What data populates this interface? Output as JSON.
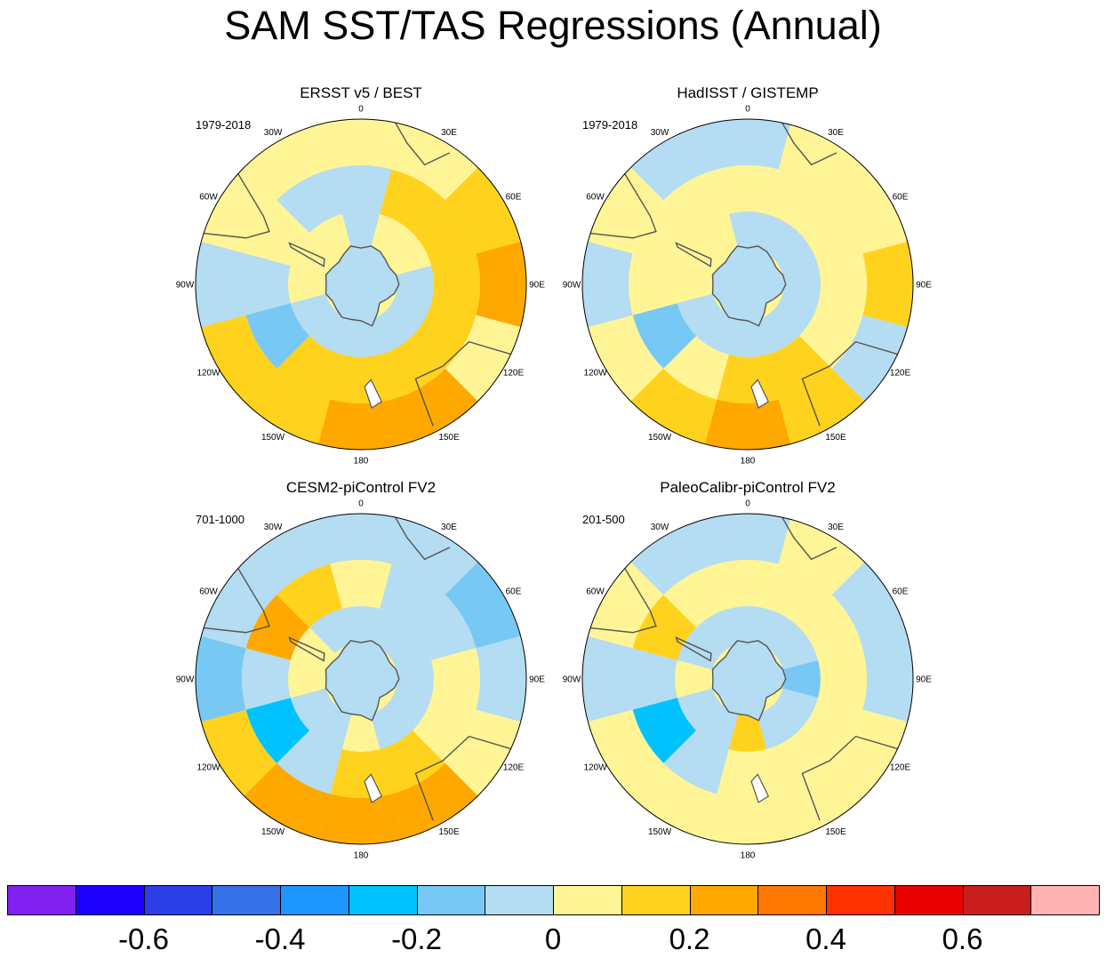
{
  "title": "SAM SST/TAS Regressions (Annual)",
  "chart_data": {
    "type": "heatmap",
    "projection": "south-polar-stereographic",
    "title": "SAM SST/TAS Regressions (Annual)",
    "lon_labels": [
      "0",
      "30E",
      "60E",
      "90E",
      "120E",
      "150E",
      "180",
      "150W",
      "120W",
      "90W",
      "60W",
      "30W"
    ],
    "colorbar": {
      "levels": [
        -0.7,
        -0.6,
        -0.5,
        -0.4,
        -0.3,
        -0.2,
        -0.1,
        0,
        0.1,
        0.2,
        0.3,
        0.4,
        0.5,
        0.6,
        0.7
      ],
      "tick_labels": [
        "-0.6",
        "-0.4",
        "-0.2",
        "0",
        "0.2",
        "0.4",
        "0.6"
      ],
      "colors": [
        "#8220f0",
        "#1e00ff",
        "#2b3ee8",
        "#3572e8",
        "#1e96ff",
        "#00c2ff",
        "#78c8f5",
        "#b4dcf2",
        "#fff596",
        "#ffd21e",
        "#ffa800",
        "#ff7800",
        "#ff3200",
        "#eb0000",
        "#c81e1e",
        "#ffb4b4"
      ]
    },
    "panels": [
      {
        "title": "ERSST v5 / BEST",
        "period": "1979-2018",
        "sectors": [
          {
            "lon": 0,
            "outer": 0.0,
            "mid": -0.1,
            "inner": -0.1
          },
          {
            "lon": 30,
            "outer": 0.0,
            "mid": 0.1,
            "inner": 0.0
          },
          {
            "lon": 60,
            "outer": 0.1,
            "mid": 0.1,
            "inner": 0.0
          },
          {
            "lon": 90,
            "outer": 0.2,
            "mid": 0.1,
            "inner": -0.1
          },
          {
            "lon": 120,
            "outer": 0.0,
            "mid": 0.1,
            "inner": -0.1
          },
          {
            "lon": 150,
            "outer": 0.2,
            "mid": 0.1,
            "inner": -0.1
          },
          {
            "lon": 180,
            "outer": 0.2,
            "mid": 0.1,
            "inner": -0.1
          },
          {
            "lon": 210,
            "outer": 0.1,
            "mid": 0.1,
            "inner": -0.1
          },
          {
            "lon": 240,
            "outer": 0.1,
            "mid": -0.2,
            "inner": -0.1
          },
          {
            "lon": 270,
            "outer": -0.1,
            "mid": -0.1,
            "inner": 0.0
          },
          {
            "lon": 300,
            "outer": 0.0,
            "mid": 0.0,
            "inner": 0.0
          },
          {
            "lon": 330,
            "outer": 0.0,
            "mid": -0.1,
            "inner": 0.0
          }
        ]
      },
      {
        "title": "HadISST / GISTEMP",
        "period": "1979-2018",
        "sectors": [
          {
            "lon": 0,
            "outer": -0.1,
            "mid": 0.0,
            "inner": -0.1
          },
          {
            "lon": 30,
            "outer": 0.0,
            "mid": 0.0,
            "inner": -0.1
          },
          {
            "lon": 60,
            "outer": 0.0,
            "mid": 0.0,
            "inner": -0.1
          },
          {
            "lon": 90,
            "outer": 0.1,
            "mid": 0.0,
            "inner": -0.1
          },
          {
            "lon": 120,
            "outer": -0.1,
            "mid": 0.0,
            "inner": -0.1
          },
          {
            "lon": 150,
            "outer": 0.1,
            "mid": 0.1,
            "inner": -0.1
          },
          {
            "lon": 180,
            "outer": 0.2,
            "mid": 0.1,
            "inner": -0.1
          },
          {
            "lon": 210,
            "outer": 0.1,
            "mid": 0.0,
            "inner": -0.1
          },
          {
            "lon": 240,
            "outer": 0.0,
            "mid": -0.2,
            "inner": -0.1
          },
          {
            "lon": 270,
            "outer": -0.1,
            "mid": 0.0,
            "inner": 0.0
          },
          {
            "lon": 300,
            "outer": 0.0,
            "mid": 0.0,
            "inner": 0.0
          },
          {
            "lon": 330,
            "outer": -0.1,
            "mid": 0.0,
            "inner": 0.0
          }
        ]
      },
      {
        "title": "CESM2-piControl FV2",
        "period": "701-1000",
        "sectors": [
          {
            "lon": 0,
            "outer": -0.1,
            "mid": 0.0,
            "inner": -0.1
          },
          {
            "lon": 30,
            "outer": -0.1,
            "mid": -0.1,
            "inner": -0.1
          },
          {
            "lon": 60,
            "outer": -0.2,
            "mid": -0.1,
            "inner": -0.1
          },
          {
            "lon": 90,
            "outer": -0.1,
            "mid": 0.0,
            "inner": -0.1
          },
          {
            "lon": 120,
            "outer": 0.0,
            "mid": 0.0,
            "inner": -0.1
          },
          {
            "lon": 150,
            "outer": 0.2,
            "mid": 0.1,
            "inner": -0.1
          },
          {
            "lon": 180,
            "outer": 0.2,
            "mid": 0.1,
            "inner": 0.0
          },
          {
            "lon": 210,
            "outer": 0.2,
            "mid": -0.1,
            "inner": -0.1
          },
          {
            "lon": 240,
            "outer": 0.1,
            "mid": -0.3,
            "inner": -0.1
          },
          {
            "lon": 270,
            "outer": -0.2,
            "mid": -0.1,
            "inner": 0.0
          },
          {
            "lon": 300,
            "outer": -0.1,
            "mid": 0.2,
            "inner": 0.0
          },
          {
            "lon": 330,
            "outer": -0.1,
            "mid": 0.1,
            "inner": -0.1
          }
        ]
      },
      {
        "title": "PaleoCalibr-piControl FV2",
        "period": "201-500",
        "sectors": [
          {
            "lon": 0,
            "outer": -0.1,
            "mid": 0.0,
            "inner": -0.1
          },
          {
            "lon": 30,
            "outer": 0.0,
            "mid": 0.0,
            "inner": -0.1
          },
          {
            "lon": 60,
            "outer": -0.1,
            "mid": 0.0,
            "inner": -0.1
          },
          {
            "lon": 90,
            "outer": -0.1,
            "mid": 0.0,
            "inner": -0.2
          },
          {
            "lon": 120,
            "outer": 0.0,
            "mid": 0.0,
            "inner": -0.1
          },
          {
            "lon": 150,
            "outer": 0.0,
            "mid": 0.0,
            "inner": -0.1
          },
          {
            "lon": 180,
            "outer": 0.0,
            "mid": 0.0,
            "inner": 0.1
          },
          {
            "lon": 210,
            "outer": 0.0,
            "mid": -0.1,
            "inner": -0.1
          },
          {
            "lon": 240,
            "outer": 0.0,
            "mid": -0.3,
            "inner": -0.1
          },
          {
            "lon": 270,
            "outer": -0.1,
            "mid": -0.1,
            "inner": 0.0
          },
          {
            "lon": 300,
            "outer": 0.0,
            "mid": 0.1,
            "inner": -0.1
          },
          {
            "lon": 330,
            "outer": -0.1,
            "mid": 0.0,
            "inner": -0.1
          }
        ]
      }
    ]
  }
}
